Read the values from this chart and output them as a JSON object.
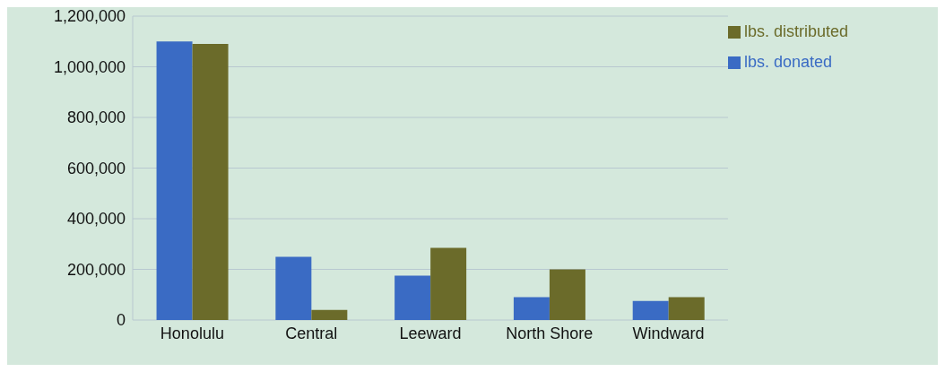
{
  "chart_data": {
    "type": "bar",
    "categories": [
      "Honolulu",
      "Central",
      "Leeward",
      "North Shore",
      "Windward"
    ],
    "series": [
      {
        "name": "lbs. donated",
        "color": "#3a6bc4",
        "values": [
          1100000,
          250000,
          175000,
          90000,
          75000
        ]
      },
      {
        "name": "lbs. distributed",
        "color": "#6b6b2a",
        "values": [
          1090000,
          40000,
          285000,
          200000,
          90000
        ]
      }
    ],
    "ylim": [
      0,
      1200000
    ],
    "yticks": [
      {
        "value": 0,
        "label": "0"
      },
      {
        "value": 200000,
        "label": "200,000"
      },
      {
        "value": 400000,
        "label": "400,000"
      },
      {
        "value": 600000,
        "label": "600,000"
      },
      {
        "value": 800000,
        "label": "800,000"
      },
      {
        "value": 1000000,
        "label": "1,000,000"
      },
      {
        "value": 1200000,
        "label": "1,200,000"
      }
    ],
    "grid": "y",
    "legend": "top right"
  }
}
